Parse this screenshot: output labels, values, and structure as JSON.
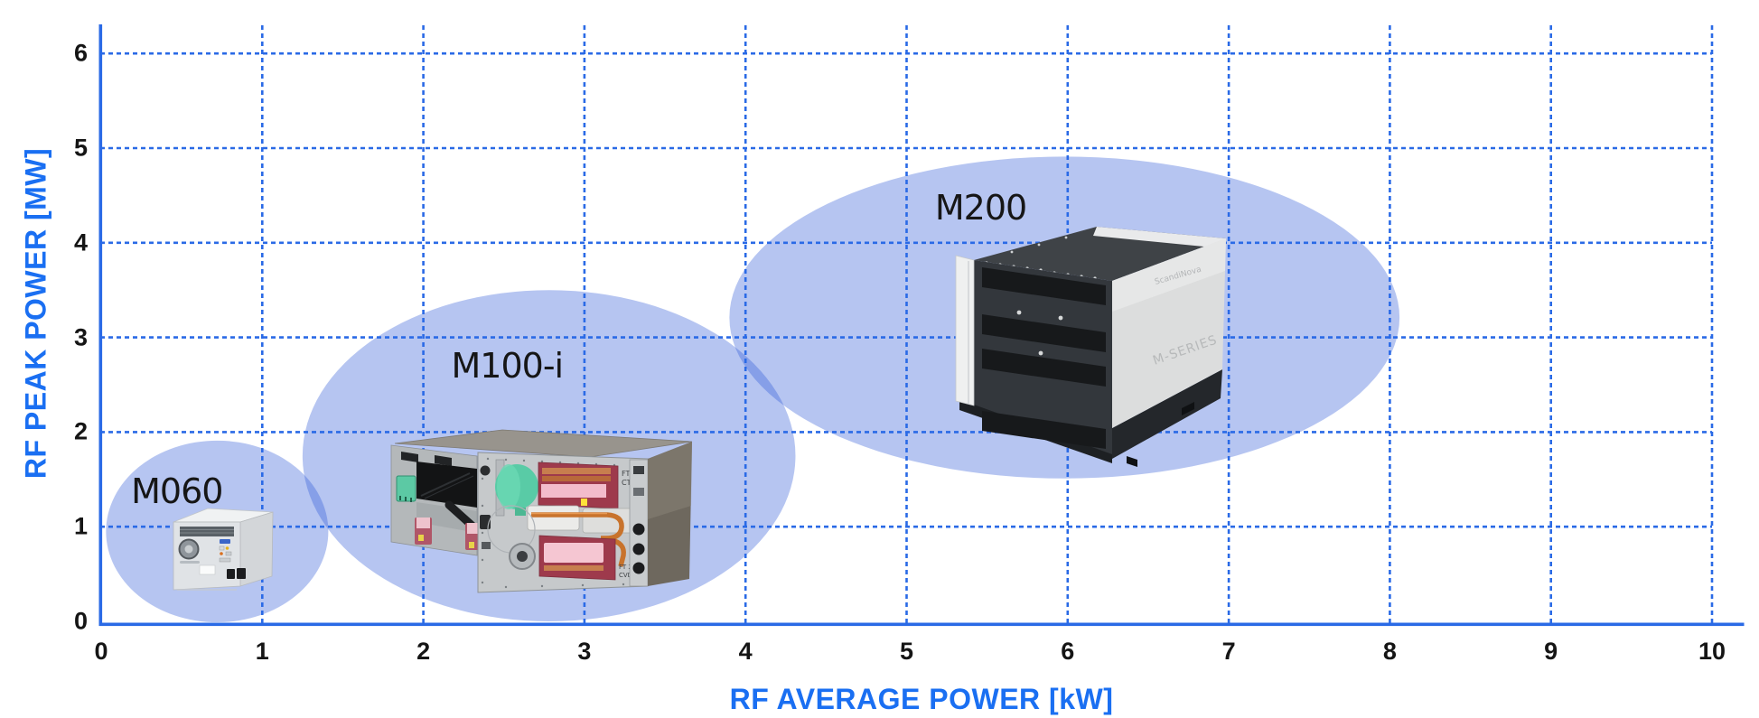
{
  "chart_data": {
    "type": "scatter",
    "title": "",
    "xlabel": "RF AVERAGE POWER [kW]",
    "ylabel": "RF PEAK POWER [MW]",
    "xlim": [
      0,
      10
    ],
    "ylim": [
      0,
      6
    ],
    "x_ticks": [
      0,
      1,
      2,
      3,
      4,
      5,
      6,
      7,
      8,
      9,
      10
    ],
    "y_ticks": [
      0,
      1,
      2,
      3,
      4,
      5,
      6
    ],
    "grid": "dashed blue gridlines at every integer, vertical lines extend above top tick",
    "legend": "none",
    "products": [
      {
        "name": "M060",
        "ellipse": {
          "cx": 0.72,
          "cy": 0.95,
          "rx": 0.69,
          "ry": 0.96
        },
        "label": {
          "x": 0.47,
          "y": 1.37
        }
      },
      {
        "name": "M100-i",
        "ellipse": {
          "cx": 2.78,
          "cy": 1.75,
          "rx": 1.53,
          "ry": 1.75
        },
        "label": {
          "x": 2.52,
          "y": 2.7
        },
        "panel_texts": [
          "FT 1",
          "CT",
          "FT 2",
          "CVD"
        ]
      },
      {
        "name": "M200",
        "ellipse": {
          "cx": 5.98,
          "cy": 3.21,
          "rx": 2.08,
          "ry": 1.7
        },
        "label": {
          "x": 5.46,
          "y": 4.37
        },
        "panel_texts": [
          "ScandiNova",
          "M-SERIES"
        ]
      }
    ]
  },
  "colors": {
    "axis_blue": "#2a6ae6",
    "grid_blue": "#2a6ae6",
    "title_blue": "#1a6ff2",
    "tick_black": "#151515",
    "bubble_blue": "#2854d6",
    "bubble_opacity": 0.34,
    "label_black": "#161616",
    "background": "#ffffff"
  }
}
